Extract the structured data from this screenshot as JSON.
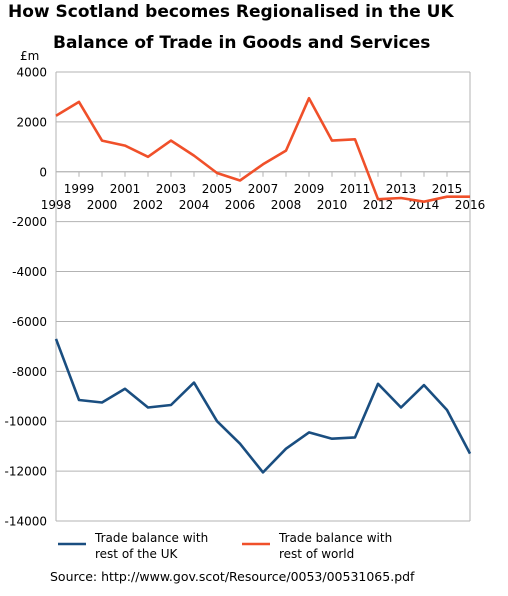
{
  "title": "How Scotland becomes Regionalised in the UK",
  "subtitle": "Balance of Trade in Goods and Services",
  "source": "Source: http://www.gov.scot/Resource/0053/00531065.pdf",
  "chart_data": {
    "type": "line",
    "title": "Balance of Trade in Goods and Services",
    "ylabel": "£m",
    "xlabel": "",
    "ylim": [
      -14000,
      4000
    ],
    "yticks": [
      4000,
      2000,
      0,
      -2000,
      -4000,
      -6000,
      -8000,
      -10000,
      -12000,
      -14000
    ],
    "grid": true,
    "legend": "bottom",
    "x": [
      "1998",
      "1999",
      "2000",
      "2001",
      "2002",
      "2003",
      "2004",
      "2005",
      "2006",
      "2007",
      "2008",
      "2009",
      "2010",
      "2011",
      "2012",
      "2013",
      "2014",
      "2015",
      "2016"
    ],
    "series": [
      {
        "name": "Trade balance with rest of the UK",
        "legend_lines": [
          "Trade balance with",
          "rest of the UK"
        ],
        "color": "#1a4e80",
        "values": [
          -6700,
          -9150,
          -9250,
          -8700,
          -9450,
          -9350,
          -8450,
          -10000,
          -10900,
          -12050,
          -11100,
          -10450,
          -10700,
          -10650,
          -8500,
          -9450,
          -8550,
          -9550,
          -11300
        ]
      },
      {
        "name": "Trade balance with rest of world",
        "legend_lines": [
          "Trade balance with",
          "rest of world"
        ],
        "color": "#f0502a",
        "values": [
          2250,
          2800,
          1250,
          1050,
          600,
          1250,
          650,
          -50,
          -350,
          300,
          850,
          2950,
          1250,
          1300,
          -1100,
          -1050,
          -1200,
          -1000,
          -1000
        ]
      }
    ]
  }
}
